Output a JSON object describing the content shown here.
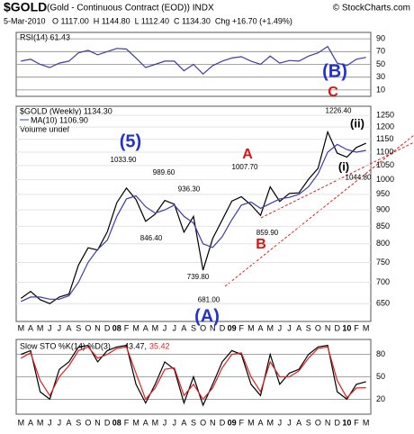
{
  "header": {
    "symbol": "$GOLD",
    "title": "(Gold - Continuous Contract (EOD)) INDX",
    "credit": "© StockCharts.com",
    "quote": "5-Mar-2010   O 1117.00  H 1144.80  L 1112.40  C 1134.30  Chg +16.70 (+1.49%)"
  },
  "chart_data": [
    {
      "type": "line",
      "categories": [
        "M",
        "A",
        "M",
        "J",
        "J",
        "A",
        "S",
        "O",
        "N",
        "D",
        "08",
        "F",
        "M",
        "A",
        "M",
        "J",
        "J",
        "A",
        "S",
        "O",
        "N",
        "D",
        "09",
        "F",
        "M",
        "A",
        "M",
        "J",
        "J",
        "A",
        "S",
        "O",
        "N",
        "D",
        "10",
        "F",
        "M"
      ],
      "series": [
        {
          "name": "RSI(14) 61.43",
          "color": "#3c3ca8",
          "values": [
            55,
            58,
            50,
            45,
            52,
            55,
            68,
            72,
            65,
            70,
            75,
            74,
            60,
            45,
            50,
            55,
            55,
            40,
            50,
            35,
            48,
            55,
            60,
            62,
            55,
            50,
            63,
            52,
            56,
            55,
            63,
            68,
            78,
            52,
            48,
            58,
            61
          ]
        }
      ],
      "ylim": [
        0,
        100
      ],
      "yticks": [
        90,
        70,
        50,
        30,
        10
      ],
      "grid": true
    },
    {
      "type": "line",
      "log_scale": true,
      "categories": [
        "M",
        "A",
        "M",
        "J",
        "J",
        "A",
        "S",
        "O",
        "N",
        "D",
        "08",
        "F",
        "M",
        "A",
        "M",
        "J",
        "J",
        "A",
        "S",
        "O",
        "N",
        "D",
        "09",
        "F",
        "M",
        "A",
        "M",
        "J",
        "J",
        "A",
        "S",
        "O",
        "N",
        "D",
        "10",
        "F",
        "M"
      ],
      "series": [
        {
          "name": "$GOLD (Weekly) 1134.30",
          "color": "#000000",
          "values": [
            662,
            678,
            659,
            650,
            665,
            672,
            743,
            789,
            783,
            834,
            923,
            971,
            933,
            865,
            887,
            930,
            918,
            833,
            880,
            730,
            815,
            869,
            928,
            942,
            916,
            883,
            975,
            927,
            953,
            955,
            1001,
            1040,
            1180,
            1096,
            1081,
            1118,
            1134.3
          ]
        },
        {
          "name": "MA(10) 1106.90",
          "color": "#3c3ca8",
          "values": [
            655,
            665,
            665,
            660,
            660,
            668,
            700,
            750,
            785,
            810,
            880,
            935,
            945,
            910,
            890,
            900,
            915,
            880,
            860,
            800,
            790,
            820,
            870,
            915,
            925,
            905,
            920,
            935,
            940,
            950,
            975,
            1020,
            1100,
            1130,
            1110,
            1100,
            1106.9
          ]
        }
      ],
      "note": "Volume undef",
      "ylim": [
        611,
        1290
      ],
      "yticks": [
        650,
        700,
        750,
        800,
        850,
        900,
        950,
        1000,
        1050,
        1100,
        1150,
        1200,
        1250
      ],
      "grid": true,
      "price_labels": {
        "values": [
          1033.9,
          989.6,
          936.3,
          846.4,
          739.8,
          681,
          1007.7,
          859.9,
          1226.4,
          1044.8
        ],
        "value_labels": [
          "1033.90",
          "989.60",
          "936.30",
          "846.40",
          "739.80",
          "681.00",
          "1007.70",
          "859.90",
          "1226.40",
          "1044.80"
        ]
      },
      "waves": [
        {
          "text": "(5)",
          "color": "#2233cc"
        },
        {
          "text": "A",
          "color": "#dd1111"
        },
        {
          "text": "B",
          "color": "#dd1111"
        },
        {
          "text": "(A)",
          "color": "#2233cc"
        },
        {
          "text": "(B)",
          "color": "#2233cc"
        },
        {
          "text": "C",
          "color": "#dd1111"
        },
        {
          "text": "(ii)",
          "color": "#000000"
        },
        {
          "text": "(i)",
          "color": "#000000"
        }
      ]
    },
    {
      "type": "line",
      "title": "Slow STO %K(14) %D(3)",
      "categories": [
        "M",
        "A",
        "M",
        "J",
        "J",
        "A",
        "S",
        "O",
        "N",
        "D",
        "08",
        "F",
        "M",
        "A",
        "M",
        "J",
        "J",
        "A",
        "S",
        "O",
        "N",
        "D",
        "09",
        "F",
        "M",
        "A",
        "M",
        "J",
        "J",
        "A",
        "S",
        "O",
        "N",
        "D",
        "10",
        "F",
        "M"
      ],
      "series": [
        {
          "name": "43.47,",
          "color": "#000000",
          "values": [
            80,
            85,
            30,
            20,
            60,
            70,
            90,
            92,
            70,
            85,
            90,
            92,
            40,
            15,
            40,
            70,
            60,
            15,
            50,
            12,
            40,
            70,
            85,
            80,
            40,
            25,
            80,
            40,
            55,
            60,
            80,
            90,
            92,
            30,
            20,
            40,
            43.47
          ]
        },
        {
          "name": "35.42",
          "color": "#e02020",
          "values": [
            75,
            82,
            45,
            25,
            50,
            65,
            85,
            90,
            75,
            80,
            88,
            90,
            55,
            20,
            35,
            60,
            62,
            25,
            40,
            20,
            35,
            62,
            80,
            82,
            50,
            30,
            70,
            50,
            50,
            58,
            75,
            88,
            90,
            45,
            22,
            35,
            35.42
          ]
        }
      ],
      "ylim": [
        0,
        100
      ],
      "yticks": [
        80,
        50,
        20
      ],
      "grid": true
    }
  ]
}
